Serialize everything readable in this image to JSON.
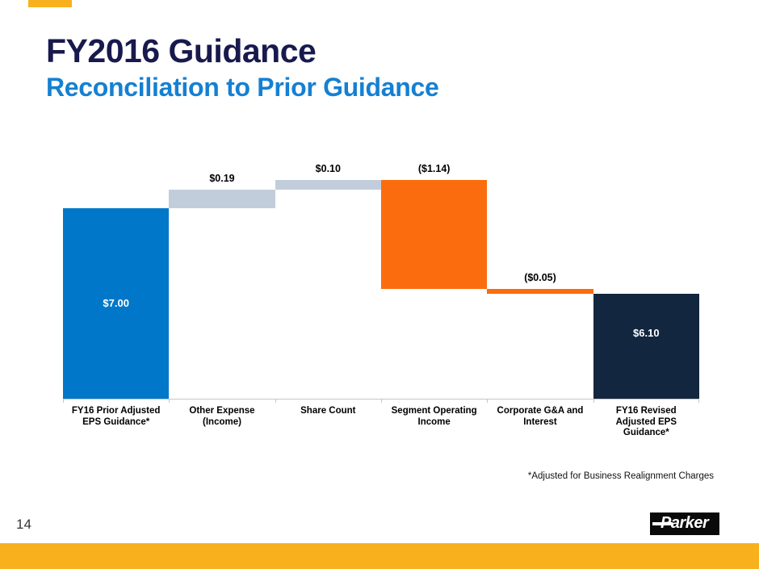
{
  "slide": {
    "title": "FY2016 Guidance",
    "subtitle": "Reconciliation to Prior Guidance",
    "footnote": "*Adjusted for Business Realignment Charges",
    "page_number": "14",
    "logo_text": "Parker"
  },
  "colors": {
    "title_navy": "#181A4D",
    "subtitle_blue": "#1580D2",
    "accent_amber": "#F8B11C",
    "axis_gray": "#C6C6C6"
  },
  "chart_data": {
    "type": "bar",
    "subtype": "waterfall",
    "title": "FY2016 Guidance — Reconciliation to Prior Guidance",
    "categories": [
      "FY16 Prior Adjusted EPS Guidance*",
      "Other Expense (Income)",
      "Share Count",
      "Segment Operating Income",
      "Corporate G&A and Interest",
      "FY16 Revised Adjusted EPS Guidance*"
    ],
    "category_lines": [
      [
        "FY16 Prior Adjusted",
        "EPS Guidance*"
      ],
      [
        "Other Expense",
        "(Income)"
      ],
      [
        "Share Count"
      ],
      [
        "Segment Operating",
        "Income"
      ],
      [
        "Corporate G&A and",
        "Interest"
      ],
      [
        "FY16 Revised",
        "Adjusted EPS",
        "Guidance*"
      ]
    ],
    "values": [
      7.0,
      0.19,
      0.1,
      -1.14,
      -0.05,
      6.1
    ],
    "cumulative": [
      7.0,
      7.19,
      7.29,
      6.15,
      6.1,
      6.1
    ],
    "bar_roles": [
      "total",
      "increase",
      "increase",
      "decrease",
      "decrease",
      "total"
    ],
    "bar_colors": [
      "#0077C8",
      "#C2CDDC",
      "#C2CDDC",
      "#FB6C0E",
      "#FB6C0E",
      "#13263F"
    ],
    "value_labels": [
      "$7.00",
      "$0.19",
      "$0.10",
      "($1.14)",
      "($0.05)",
      "$6.10"
    ],
    "label_placement": [
      "inside",
      "above",
      "above",
      "above",
      "above",
      "inside"
    ],
    "inside_label_frac": [
      0.5,
      null,
      null,
      null,
      null,
      0.38
    ],
    "xlabel": "",
    "ylabel": "",
    "ylim": [
      5.0,
      7.53
    ],
    "baseline": 5.0,
    "grid": false,
    "legend": false
  }
}
